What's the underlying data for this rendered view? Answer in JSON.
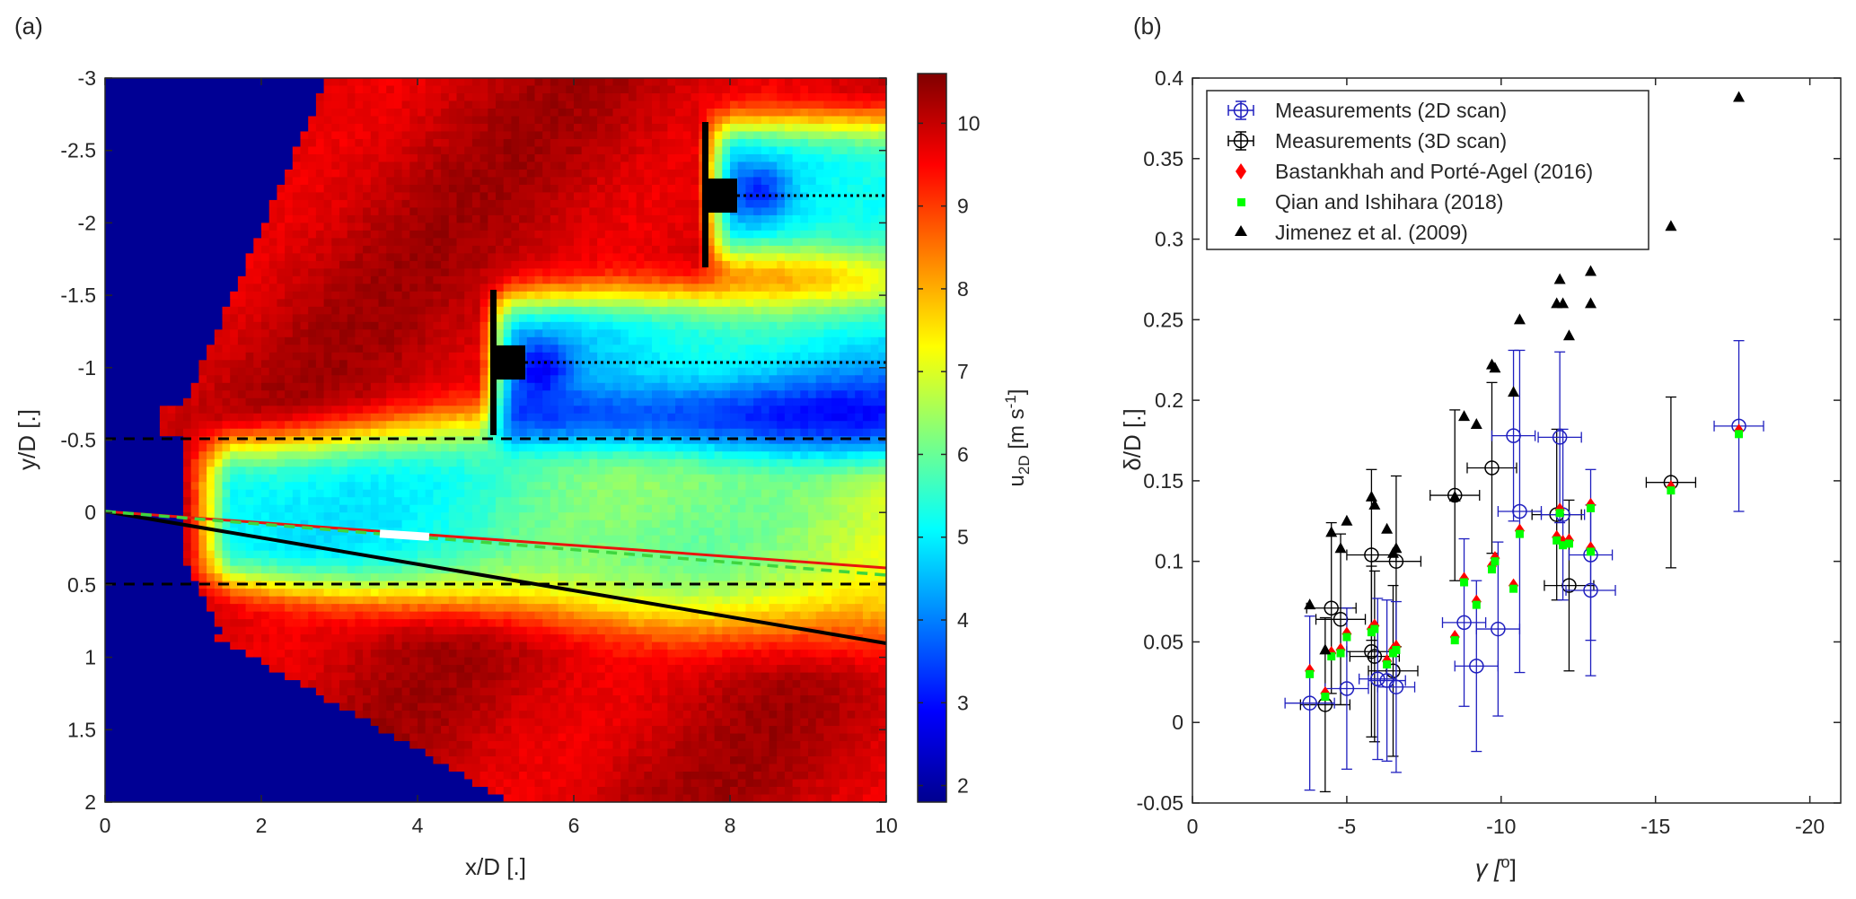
{
  "panel_a": {
    "label": "(a)",
    "xlabel": "x/D [.]",
    "ylabel": "y/D [.]",
    "colorbar_label_main": "u",
    "colorbar_label_sub": "2D",
    "colorbar_label_units": " [m s",
    "colorbar_label_exp": "-1",
    "colorbar_label_close": "]",
    "xticks": [
      "0",
      "2",
      "4",
      "6",
      "8",
      "10"
    ],
    "yticks": [
      "-3",
      "-2.5",
      "-2",
      "-1.5",
      "-1",
      "-0.5",
      "0",
      "0.5",
      "1",
      "1.5",
      "2"
    ],
    "cticks": [
      "2",
      "3",
      "4",
      "5",
      "6",
      "7",
      "8",
      "9",
      "10"
    ]
  },
  "panel_b": {
    "label": "(b)",
    "xlabel": "γ [",
    "xlabel_sup": "o",
    "xlabel_close": "]",
    "ylabel": "δ/D [.]",
    "xticks": [
      "0",
      "-5",
      "-10",
      "-15",
      "-20"
    ],
    "yticks": [
      "-0.05",
      "0",
      "0.05",
      "0.1",
      "0.15",
      "0.2",
      "0.25",
      "0.3",
      "0.35",
      "0.4"
    ],
    "legend": [
      {
        "label": "Measurements (2D scan)",
        "marker": "circle-errorbar",
        "color": "#1f1fbf"
      },
      {
        "label": "Measurements (3D scan)",
        "marker": "circle-errorbar",
        "color": "#000000"
      },
      {
        "label": "Bastankhah and Porté-Agel (2016)",
        "marker": "diamond",
        "color": "#ff0000"
      },
      {
        "label": "Qian and Ishihara (2018)",
        "marker": "square",
        "color": "#00ff00"
      },
      {
        "label": "Jimenez et al. (2009)",
        "marker": "triangle",
        "color": "#000000"
      }
    ]
  },
  "chart_data": [
    {
      "type": "heatmap",
      "title": "",
      "xlabel": "x/D [.]",
      "ylabel": "y/D [.]",
      "xlim": [
        0,
        10
      ],
      "ylim": [
        -3,
        2
      ],
      "y_reversed": true,
      "colorbar": {
        "label": "u2D [m s-1]",
        "range": [
          1.8,
          10.6
        ],
        "colormap": "jet"
      },
      "turbines": [
        {
          "x": 5.0,
          "y": -1.0,
          "rotor_extent": [
            -1.5,
            -0.45
          ],
          "wake_centerline_y": -1.0
        },
        {
          "x": 7.8,
          "y": -2.2,
          "rotor_extent": [
            -2.7,
            -1.7
          ],
          "wake_centerline_y": -2.2
        }
      ],
      "reference_lines": [
        {
          "style": "black-dashed",
          "y": -0.5
        },
        {
          "style": "black-dashed",
          "y": 0.5
        },
        {
          "style": "black-solid",
          "from": [
            0,
            0
          ],
          "to": [
            10,
            0.9
          ]
        },
        {
          "style": "red-solid",
          "from": [
            0,
            0
          ],
          "to": [
            10,
            0.38
          ]
        },
        {
          "style": "green-dashed",
          "from": [
            0,
            0
          ],
          "to": [
            10,
            0.44
          ]
        }
      ]
    },
    {
      "type": "scatter",
      "title": "",
      "xlabel": "γ [o]",
      "ylabel": "δ/D [.]",
      "xlim": [
        0,
        -21
      ],
      "ylim": [
        -0.05,
        0.4
      ],
      "x_reversed": true,
      "series": [
        {
          "name": "Measurements (2D scan)",
          "points": [
            {
              "x": -3.8,
              "y": 0.012,
              "yerr": 0.054,
              "xerr": 0.8
            },
            {
              "x": -5.0,
              "y": 0.021,
              "yerr": 0.05,
              "xerr": 0.7
            },
            {
              "x": -6.0,
              "y": 0.027,
              "yerr": 0.05,
              "xerr": 0.6
            },
            {
              "x": -6.3,
              "y": 0.026,
              "yerr": 0.05,
              "xerr": 0.6
            },
            {
              "x": -6.6,
              "y": 0.022,
              "yerr": 0.053,
              "xerr": 0.6
            },
            {
              "x": -8.8,
              "y": 0.062,
              "yerr": 0.052,
              "xerr": 0.7
            },
            {
              "x": -9.2,
              "y": 0.035,
              "yerr": 0.053,
              "xerr": 0.7
            },
            {
              "x": -9.9,
              "y": 0.058,
              "yerr": 0.054,
              "xerr": 0.7
            },
            {
              "x": -10.4,
              "y": 0.178,
              "yerr": 0.053,
              "xerr": 0.7
            },
            {
              "x": -10.6,
              "y": 0.131,
              "yerr": 0.1,
              "xerr": 0.7
            },
            {
              "x": -11.9,
              "y": 0.177,
              "yerr": 0.053,
              "xerr": 0.7
            },
            {
              "x": -12.0,
              "y": 0.129,
              "yerr": 0.053,
              "xerr": 0.7
            },
            {
              "x": -12.9,
              "y": 0.104,
              "yerr": 0.053,
              "xerr": 0.7
            },
            {
              "x": -12.9,
              "y": 0.082,
              "yerr": 0.053,
              "xerr": 0.8
            },
            {
              "x": -17.7,
              "y": 0.184,
              "yerr": 0.053,
              "xerr": 0.8
            }
          ]
        },
        {
          "name": "Measurements (3D scan)",
          "points": [
            {
              "x": -4.3,
              "y": 0.011,
              "yerr": 0.054,
              "xerr": 0.8
            },
            {
              "x": -4.5,
              "y": 0.071,
              "yerr": 0.053,
              "xerr": 0.8
            },
            {
              "x": -4.8,
              "y": 0.064,
              "yerr": 0.053,
              "xerr": 0.8
            },
            {
              "x": -5.8,
              "y": 0.104,
              "yerr": 0.053,
              "xerr": 0.8
            },
            {
              "x": -5.8,
              "y": 0.044,
              "yerr": 0.053,
              "xerr": 0.8
            },
            {
              "x": -5.9,
              "y": 0.041,
              "yerr": 0.053,
              "xerr": 0.8
            },
            {
              "x": -6.5,
              "y": 0.032,
              "yerr": 0.053,
              "xerr": 0.8
            },
            {
              "x": -6.6,
              "y": 0.1,
              "yerr": 0.053,
              "xerr": 0.8
            },
            {
              "x": -8.5,
              "y": 0.141,
              "yerr": 0.053,
              "xerr": 0.8
            },
            {
              "x": -9.7,
              "y": 0.158,
              "yerr": 0.053,
              "xerr": 0.8
            },
            {
              "x": -11.8,
              "y": 0.129,
              "yerr": 0.053,
              "xerr": 0.8
            },
            {
              "x": -12.2,
              "y": 0.085,
              "yerr": 0.053,
              "xerr": 0.8
            },
            {
              "x": -15.5,
              "y": 0.149,
              "yerr": 0.053,
              "xerr": 0.8
            }
          ]
        },
        {
          "name": "Bastankhah and Porté-Agel (2016)",
          "points": [
            {
              "x": -3.8,
              "y": 0.032
            },
            {
              "x": -4.3,
              "y": 0.018
            },
            {
              "x": -4.5,
              "y": 0.043
            },
            {
              "x": -4.8,
              "y": 0.045
            },
            {
              "x": -5.0,
              "y": 0.055
            },
            {
              "x": -5.8,
              "y": 0.058
            },
            {
              "x": -5.9,
              "y": 0.06
            },
            {
              "x": -6.3,
              "y": 0.038
            },
            {
              "x": -6.5,
              "y": 0.045
            },
            {
              "x": -6.6,
              "y": 0.047
            },
            {
              "x": -8.5,
              "y": 0.053
            },
            {
              "x": -8.8,
              "y": 0.089
            },
            {
              "x": -9.2,
              "y": 0.075
            },
            {
              "x": -9.7,
              "y": 0.097
            },
            {
              "x": -9.8,
              "y": 0.102
            },
            {
              "x": -10.4,
              "y": 0.085
            },
            {
              "x": -10.6,
              "y": 0.119
            },
            {
              "x": -11.8,
              "y": 0.115
            },
            {
              "x": -11.9,
              "y": 0.132
            },
            {
              "x": -12.0,
              "y": 0.112
            },
            {
              "x": -12.2,
              "y": 0.113
            },
            {
              "x": -12.9,
              "y": 0.135
            },
            {
              "x": -12.9,
              "y": 0.108
            },
            {
              "x": -15.5,
              "y": 0.146
            },
            {
              "x": -17.7,
              "y": 0.181
            }
          ]
        },
        {
          "name": "Qian and Ishihara (2018)",
          "points": [
            {
              "x": -3.8,
              "y": 0.03
            },
            {
              "x": -4.3,
              "y": 0.016
            },
            {
              "x": -4.5,
              "y": 0.041
            },
            {
              "x": -4.8,
              "y": 0.043
            },
            {
              "x": -5.0,
              "y": 0.053
            },
            {
              "x": -5.8,
              "y": 0.056
            },
            {
              "x": -5.9,
              "y": 0.058
            },
            {
              "x": -6.3,
              "y": 0.036
            },
            {
              "x": -6.5,
              "y": 0.043
            },
            {
              "x": -6.6,
              "y": 0.045
            },
            {
              "x": -8.5,
              "y": 0.051
            },
            {
              "x": -8.8,
              "y": 0.087
            },
            {
              "x": -9.2,
              "y": 0.073
            },
            {
              "x": -9.7,
              "y": 0.095
            },
            {
              "x": -9.8,
              "y": 0.1
            },
            {
              "x": -10.4,
              "y": 0.083
            },
            {
              "x": -10.6,
              "y": 0.117
            },
            {
              "x": -11.8,
              "y": 0.113
            },
            {
              "x": -11.9,
              "y": 0.13
            },
            {
              "x": -12.0,
              "y": 0.11
            },
            {
              "x": -12.2,
              "y": 0.111
            },
            {
              "x": -12.9,
              "y": 0.133
            },
            {
              "x": -12.9,
              "y": 0.106
            },
            {
              "x": -15.5,
              "y": 0.144
            },
            {
              "x": -17.7,
              "y": 0.179
            }
          ]
        },
        {
          "name": "Jimenez et al. (2009)",
          "points": [
            {
              "x": -3.8,
              "y": 0.073
            },
            {
              "x": -4.3,
              "y": 0.045
            },
            {
              "x": -4.5,
              "y": 0.118
            },
            {
              "x": -4.8,
              "y": 0.108
            },
            {
              "x": -5.0,
              "y": 0.125
            },
            {
              "x": -5.8,
              "y": 0.14
            },
            {
              "x": -5.9,
              "y": 0.135
            },
            {
              "x": -6.3,
              "y": 0.12
            },
            {
              "x": -6.5,
              "y": 0.105
            },
            {
              "x": -6.6,
              "y": 0.108
            },
            {
              "x": -8.5,
              "y": 0.14
            },
            {
              "x": -8.8,
              "y": 0.19
            },
            {
              "x": -9.2,
              "y": 0.185
            },
            {
              "x": -9.7,
              "y": 0.222
            },
            {
              "x": -9.8,
              "y": 0.22
            },
            {
              "x": -10.4,
              "y": 0.205
            },
            {
              "x": -10.6,
              "y": 0.25
            },
            {
              "x": -11.8,
              "y": 0.26
            },
            {
              "x": -11.9,
              "y": 0.275
            },
            {
              "x": -12.0,
              "y": 0.26
            },
            {
              "x": -12.2,
              "y": 0.24
            },
            {
              "x": -12.9,
              "y": 0.28
            },
            {
              "x": -12.9,
              "y": 0.26
            },
            {
              "x": -15.5,
              "y": 0.308
            },
            {
              "x": -17.7,
              "y": 0.388
            }
          ]
        }
      ]
    }
  ]
}
